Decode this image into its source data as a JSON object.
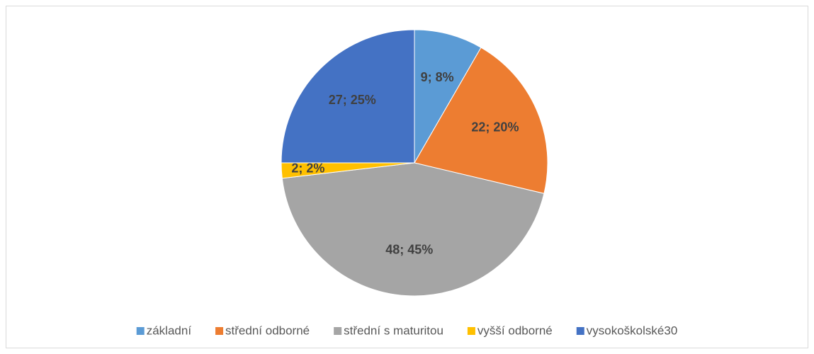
{
  "chart_data": {
    "type": "pie",
    "categories": [
      "základní",
      "střední odborné",
      "střední s maturitou",
      "vyšší odborné",
      "vysokoškolské30"
    ],
    "values": [
      9,
      22,
      48,
      2,
      27
    ],
    "value_labels": [
      "9; 8%",
      "22; 20%",
      "48; 45%",
      "2; 2%",
      "27; 25%"
    ],
    "colors": [
      "#5b9bd5",
      "#ed7d31",
      "#a5a5a5",
      "#ffc000",
      "#4472c4"
    ],
    "legend": "bottom"
  }
}
